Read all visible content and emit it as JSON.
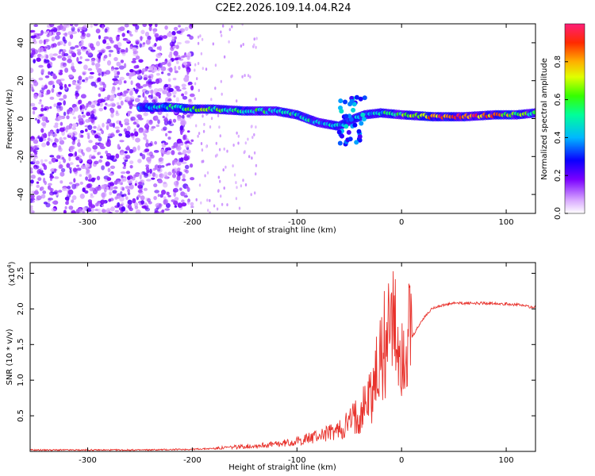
{
  "title": "C2E2.2026.109.14.04.R24",
  "chart_data": [
    {
      "type": "heatmap",
      "title": "C2E2.2026.109.14.04.R24",
      "xlabel": "Height of straight line (km)",
      "ylabel": "Frequency (Hz)",
      "xlim": [
        -355,
        128
      ],
      "ylim": [
        -50,
        50
      ],
      "xticks": [
        -300,
        -200,
        -100,
        0,
        100
      ],
      "yticks": [
        -40,
        -20,
        0,
        20,
        40
      ],
      "colorbar": {
        "label": "Normalized spectral amplitude",
        "range": [
          0,
          1
        ],
        "ticks": [
          0.0,
          0.2,
          0.4,
          0.6,
          0.8
        ]
      },
      "ridge": [
        {
          "x": -250,
          "y": 6,
          "amp": 0.35
        },
        {
          "x": -220,
          "y": 6,
          "amp": 0.45
        },
        {
          "x": -200,
          "y": 5,
          "amp": 0.55
        },
        {
          "x": -180,
          "y": 5,
          "amp": 0.6
        },
        {
          "x": -150,
          "y": 4,
          "amp": 0.5
        },
        {
          "x": -120,
          "y": 4,
          "amp": 0.5
        },
        {
          "x": -100,
          "y": 2,
          "amp": 0.45
        },
        {
          "x": -80,
          "y": -2,
          "amp": 0.4
        },
        {
          "x": -60,
          "y": -4,
          "amp": 0.4
        },
        {
          "x": -45,
          "y": 0,
          "amp": 0.35
        },
        {
          "x": -35,
          "y": 2,
          "amp": 0.35
        },
        {
          "x": -20,
          "y": 3,
          "amp": 0.45
        },
        {
          "x": 0,
          "y": 2,
          "amp": 0.55
        },
        {
          "x": 30,
          "y": 1,
          "amp": 0.85
        },
        {
          "x": 60,
          "y": 1,
          "amp": 0.9
        },
        {
          "x": 90,
          "y": 2,
          "amp": 0.8
        },
        {
          "x": 110,
          "y": 2,
          "amp": 0.6
        },
        {
          "x": 128,
          "y": 3,
          "amp": 0.5
        }
      ]
    },
    {
      "type": "line",
      "xlabel": "Height of straight line (km)",
      "ylabel": "SNR (10 * v/v)",
      "y_scale_label": "(x10",
      "y_scale_exponent": "4",
      "xlim": [
        -355,
        128
      ],
      "ylim": [
        0,
        2.65
      ],
      "xticks": [
        -300,
        -200,
        -100,
        0,
        100
      ],
      "yticks": [
        0.5,
        1.0,
        1.5,
        2.0,
        2.5
      ],
      "ytick_labels": [
        "0.5",
        "1.0",
        "1.5",
        "2.0",
        "2.5"
      ],
      "color": "#e8322c",
      "series": [
        {
          "name": "SNR",
          "x": [
            -355,
            -300,
            -250,
            -200,
            -180,
            -160,
            -140,
            -120,
            -100,
            -80,
            -60,
            -50,
            -40,
            -30,
            -25,
            -20,
            -15,
            -10,
            -5,
            0,
            10,
            20,
            30,
            50,
            70,
            90,
            100,
            110,
            128
          ],
          "y": [
            0.02,
            0.02,
            0.02,
            0.03,
            0.04,
            0.06,
            0.08,
            0.1,
            0.14,
            0.22,
            0.3,
            0.4,
            0.55,
            0.8,
            1.0,
            1.3,
            1.55,
            1.7,
            1.55,
            1.4,
            1.6,
            1.85,
            2.02,
            2.08,
            2.08,
            2.08,
            2.07,
            2.06,
            2.02
          ]
        }
      ]
    }
  ]
}
